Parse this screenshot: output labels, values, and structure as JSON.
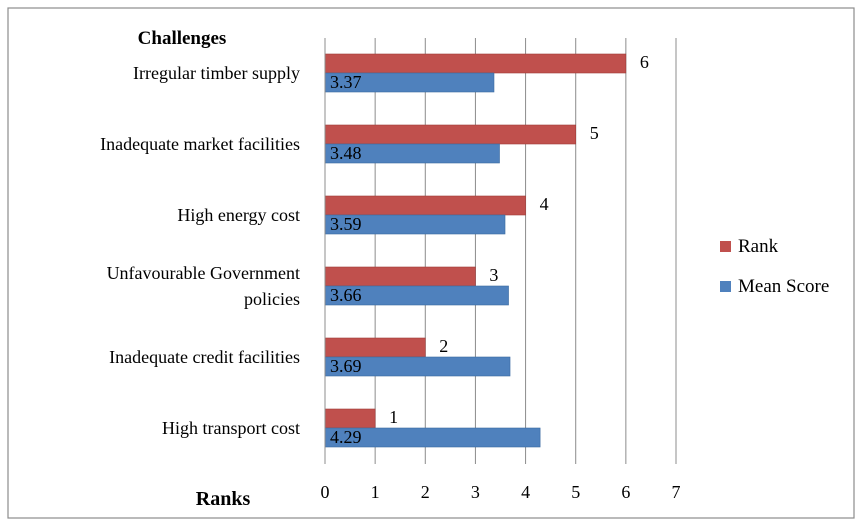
{
  "chart_data": {
    "type": "bar",
    "orientation": "horizontal",
    "category_axis_title": "Challenges",
    "value_axis_title": "Ranks",
    "categories": [
      "Irregular timber supply",
      "Inadequate market facilities",
      "High energy  cost",
      "Unfavourable Government policies",
      "Inadequate credit facilities",
      "High transport cost"
    ],
    "category_lines": [
      [
        "Irregular timber supply"
      ],
      [
        "Inadequate market facilities"
      ],
      [
        "High energy  cost"
      ],
      [
        "Unfavourable Government",
        "policies"
      ],
      [
        "Inadequate credit facilities"
      ],
      [
        "High transport cost"
      ]
    ],
    "series": [
      {
        "name": "Rank",
        "color": "#c0504d",
        "values": [
          6,
          5,
          4,
          3,
          2,
          1
        ],
        "labels": [
          "6",
          "5",
          "4",
          "3",
          "2",
          "1"
        ]
      },
      {
        "name": "Mean Score",
        "color": "#4f81bd",
        "values": [
          3.37,
          3.48,
          3.59,
          3.66,
          3.69,
          4.29
        ],
        "labels": [
          "3.37",
          "3.48",
          "3.59",
          "3.66",
          "3.69",
          "4.29"
        ]
      }
    ],
    "xlim": [
      0,
      7
    ],
    "xticks": [
      0,
      1,
      2,
      3,
      4,
      5,
      6,
      7
    ],
    "grid": true,
    "legend_position": "right"
  }
}
